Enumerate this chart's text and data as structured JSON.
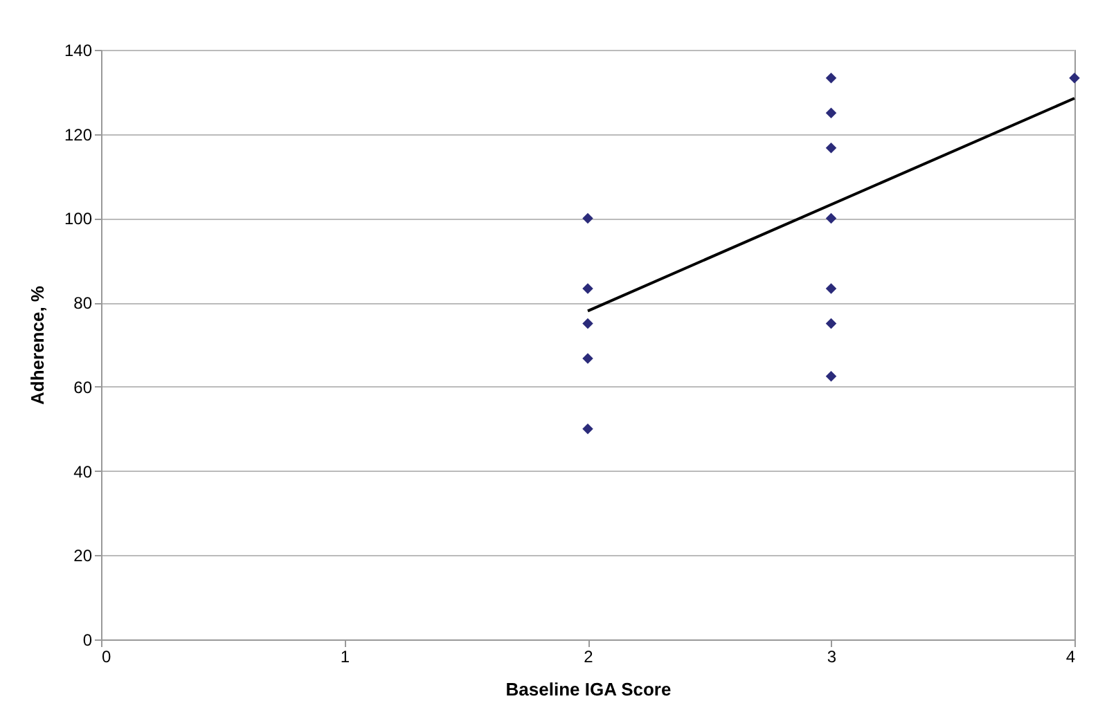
{
  "chart_data": {
    "type": "scatter",
    "xlabel": "Baseline IGA Score",
    "ylabel": "Adherence, %",
    "xlim": [
      0,
      4
    ],
    "xticks": [
      0,
      1,
      2,
      3,
      4
    ],
    "ylim": [
      0,
      140
    ],
    "yticks": [
      0,
      20,
      40,
      60,
      80,
      100,
      120,
      140
    ],
    "grid": "y",
    "series": [
      {
        "color": "#2b2b7a",
        "marker": "diamond",
        "x": [
          2,
          2,
          2,
          2,
          2,
          3,
          3,
          3,
          3,
          3,
          3,
          3,
          4
        ],
        "values": [
          100,
          83.3,
          75,
          66.7,
          50,
          133.3,
          125,
          116.7,
          100,
          83.3,
          75,
          62.5,
          133.3
        ]
      },
      {
        "type": "line",
        "color": "#000000",
        "marker": "none",
        "line_style": "solid",
        "x": [
          2,
          4
        ],
        "values": [
          78,
          128.5
        ]
      }
    ]
  }
}
